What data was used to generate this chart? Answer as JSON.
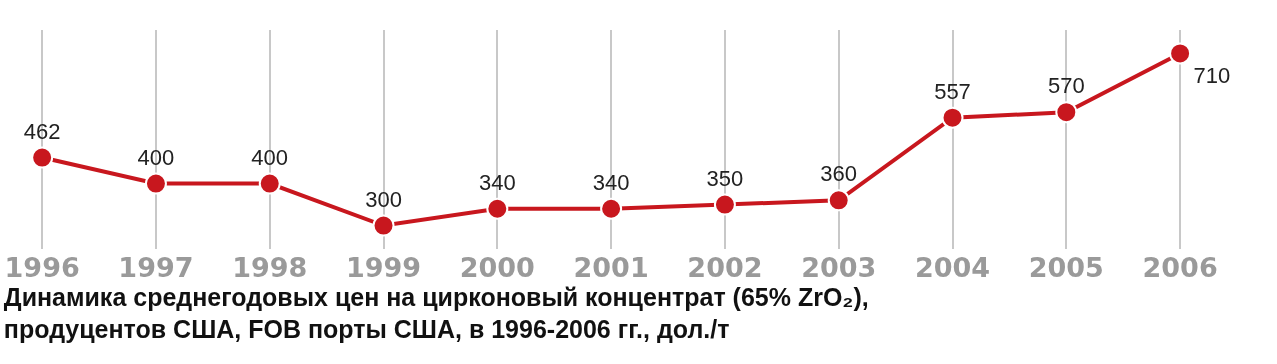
{
  "chart_data": {
    "type": "line",
    "title": "Динамика среднегодовых цен на цирконовый концентрат (65% ZrO₂),\nпродуцентов США, FOB порты США, в 1996-2006 гг., дол./т",
    "categories": [
      "1996",
      "1997",
      "1998",
      "1999",
      "2000",
      "2001",
      "2002",
      "2003",
      "2004",
      "2005",
      "2006"
    ],
    "series": [
      {
        "color": "#c8171e",
        "values": [
          462,
          400,
          400,
          300,
          340,
          340,
          350,
          360,
          557,
          570,
          710
        ]
      }
    ],
    "data_labels": true,
    "grid": "x",
    "marker": "circle",
    "line_style": "solid",
    "tick_labels": "x"
  }
}
